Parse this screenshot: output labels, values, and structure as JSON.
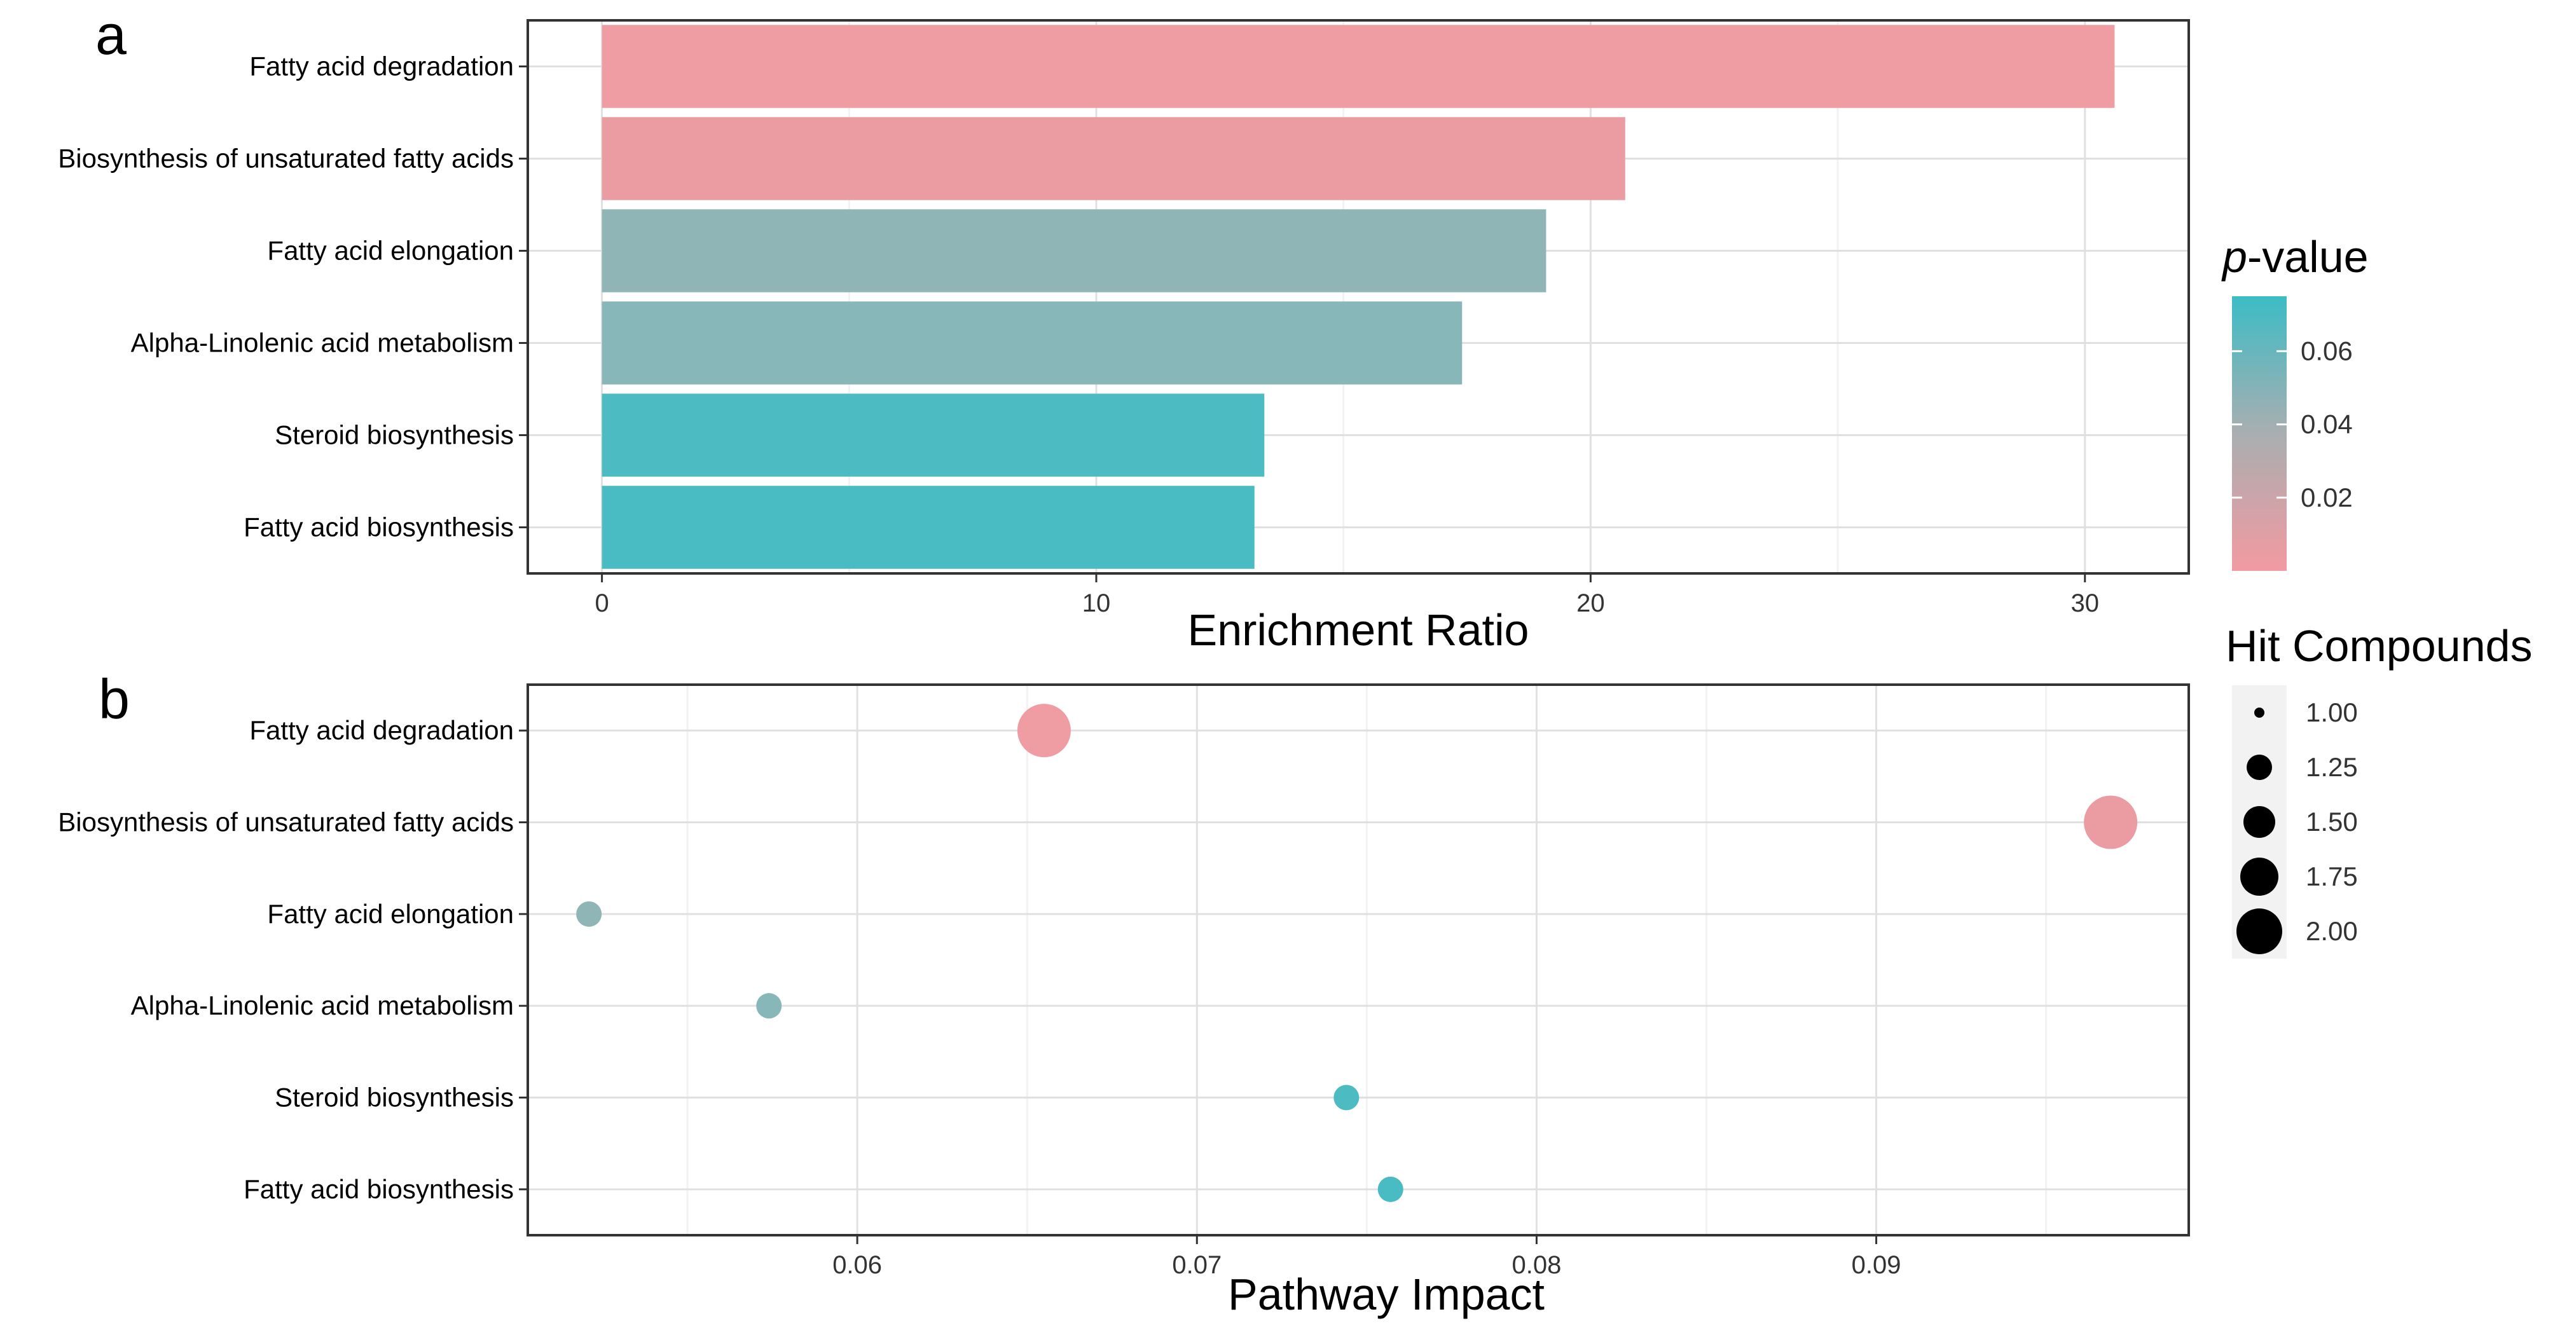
{
  "chart_data": [
    {
      "type": "bar",
      "panel_label": "a",
      "orientation": "horizontal",
      "categories": [
        "Fatty acid degradation",
        "Biosynthesis of unsaturated fatty acids",
        "Fatty acid elongation",
        "Alpha-Linolenic acid metabolism",
        "Steroid biosynthesis",
        "Fatty acid biosynthesis"
      ],
      "values": [
        30.6,
        20.7,
        19.1,
        17.4,
        13.4,
        13.2
      ],
      "p_values": [
        0.001,
        0.006,
        0.035,
        0.045,
        0.072,
        0.074
      ],
      "bar_colors": [
        "#f09ca3",
        "#eb9ba2",
        "#8fb5b6",
        "#87b7b9",
        "#4dbbc2",
        "#48bbc3"
      ],
      "xlabel": "Enrichment Ratio",
      "xlim": [
        -1.5,
        32.1
      ],
      "xticks": [
        0,
        10,
        20,
        30
      ],
      "tick_labels": [
        "0",
        "10",
        "20",
        "30"
      ],
      "grid": true
    },
    {
      "type": "scatter",
      "panel_label": "b",
      "categories": [
        "Fatty acid degradation",
        "Biosynthesis of unsaturated fatty acids",
        "Fatty acid elongation",
        "Alpha-Linolenic acid metabolism",
        "Steroid biosynthesis",
        "Fatty acid biosynthesis"
      ],
      "x": [
        0.0655,
        0.0969,
        0.0521,
        0.0574,
        0.0744,
        0.0757
      ],
      "hit_compounds": [
        2,
        2,
        1,
        1,
        1,
        1
      ],
      "point_colors": [
        "#f09ca3",
        "#eb9ba2",
        "#8fb5b6",
        "#87b7b9",
        "#4dbbc2",
        "#48bbc3"
      ],
      "xlabel": "Pathway Impact",
      "xlim": [
        0.0503,
        0.0992
      ],
      "xticks": [
        0.06,
        0.07,
        0.08,
        0.09
      ],
      "tick_labels": [
        "0.06",
        "0.07",
        "0.08",
        "0.09"
      ],
      "grid": true
    }
  ],
  "legend_pvalue": {
    "title_italic": "p",
    "title_rest": "-value",
    "ticks": [
      0.06,
      0.04,
      0.02
    ],
    "tick_labels": [
      "0.06",
      "0.04",
      "0.02"
    ],
    "range": [
      0,
      0.075
    ],
    "color_high": "#3cbcc5",
    "color_mid": "#a9aeb0",
    "color_low": "#f29aa1"
  },
  "legend_size": {
    "title": "Hit Compounds",
    "values": [
      1.0,
      1.25,
      1.5,
      1.75,
      2.0
    ],
    "labels": [
      "1.00",
      "1.25",
      "1.50",
      "1.75",
      "2.00"
    ]
  },
  "colors": {
    "panel_bg": "#ffffff",
    "grid_major": "#e0e0e0",
    "grid_minor": "#f2f2f2",
    "border": "#333333",
    "legend_key_bg": "#f2f2f2"
  }
}
